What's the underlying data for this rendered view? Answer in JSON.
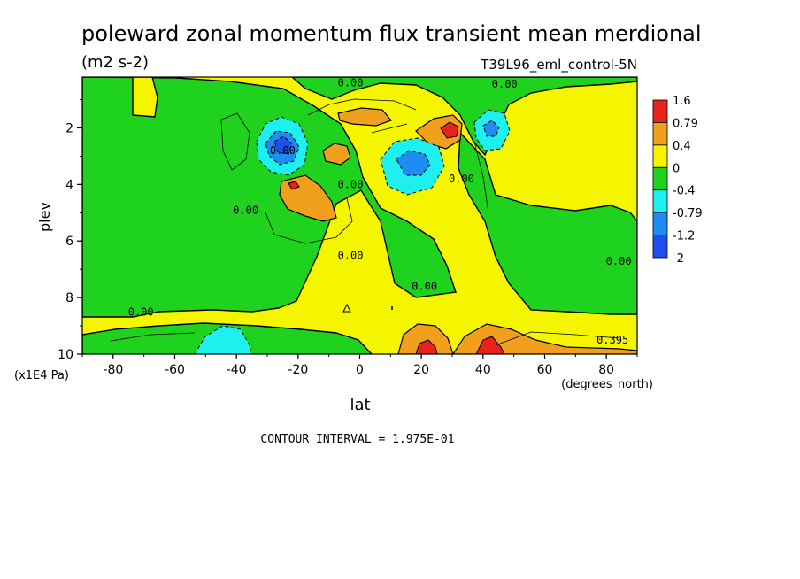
{
  "chart_data": {
    "type": "heatmap",
    "title": "poleward zonal momentum flux transient mean merdional",
    "units": "(m2 s-2)",
    "dataset": "T39L96_eml_control-5N",
    "xlabel": "lat",
    "x_units": "(degrees_north)",
    "ylabel": "plev",
    "y_units": "(x1E4 Pa)",
    "xlim": [
      -90,
      90
    ],
    "ylim": [
      10,
      0.2
    ],
    "x_ticks": [
      -80,
      -60,
      -40,
      -20,
      0,
      20,
      40,
      60,
      80
    ],
    "x_tick_labels": [
      "-80",
      "-60",
      "-40",
      "-20",
      "0",
      "20",
      "40",
      "60",
      "80"
    ],
    "y_ticks": [
      2,
      4,
      6,
      8,
      10
    ],
    "y_tick_labels": [
      "2",
      "4",
      "6",
      "8",
      "10"
    ],
    "contour_interval": "CONTOUR INTERVAL = 1.975E-01",
    "colorbar": {
      "labels": [
        "1.6",
        "0.79",
        "0.4",
        "0",
        "-0.4",
        "-0.79",
        "-1.2",
        "-2"
      ],
      "colors": [
        "#e8231b",
        "#f0a01c",
        "#f5f500",
        "#1ed21e",
        "#1ef0f0",
        "#1e8cf0",
        "#1e50f0"
      ]
    },
    "contour_labels": [
      {
        "text": "0.00",
        "lat": -37,
        "plev": 5.0
      },
      {
        "text": "0.00",
        "lat": -3,
        "plev": 0.5
      },
      {
        "text": "0.00",
        "lat": 47,
        "plev": 0.55
      },
      {
        "text": "0.00",
        "lat": -25,
        "plev": 2.9
      },
      {
        "text": "0.00",
        "lat": -3,
        "plev": 4.1
      },
      {
        "text": "0.00",
        "lat": -3,
        "plev": 6.6
      },
      {
        "text": "0.00",
        "lat": 33,
        "plev": 3.9
      },
      {
        "text": "0.00",
        "lat": 21,
        "plev": 7.7
      },
      {
        "text": "0.00",
        "lat": 84,
        "plev": 6.8
      },
      {
        "text": "0.00",
        "lat": -71,
        "plev": 8.6
      },
      {
        "text": "0.395",
        "lat": 82,
        "plev": 9.6
      }
    ],
    "features": [
      {
        "lat": -23,
        "plev": 2.8,
        "value": -1.6
      },
      {
        "lat": 13,
        "plev": 3.1,
        "value": -1.2
      },
      {
        "lat": 44,
        "plev": 2.0,
        "value": -1.0
      },
      {
        "lat": 29,
        "plev": 2.0,
        "value": 1.6
      },
      {
        "lat": -18,
        "plev": 4.1,
        "value": 1.0
      },
      {
        "lat": 7,
        "plev": 1.8,
        "value": 0.6
      },
      {
        "lat": -5,
        "plev": 2.9,
        "value": 0.6
      },
      {
        "lat": 22,
        "plev": 9.9,
        "value": 1.6
      },
      {
        "lat": 43,
        "plev": 9.8,
        "value": 1.6
      },
      {
        "lat": -40,
        "plev": 9.6,
        "value": -0.79
      }
    ]
  }
}
